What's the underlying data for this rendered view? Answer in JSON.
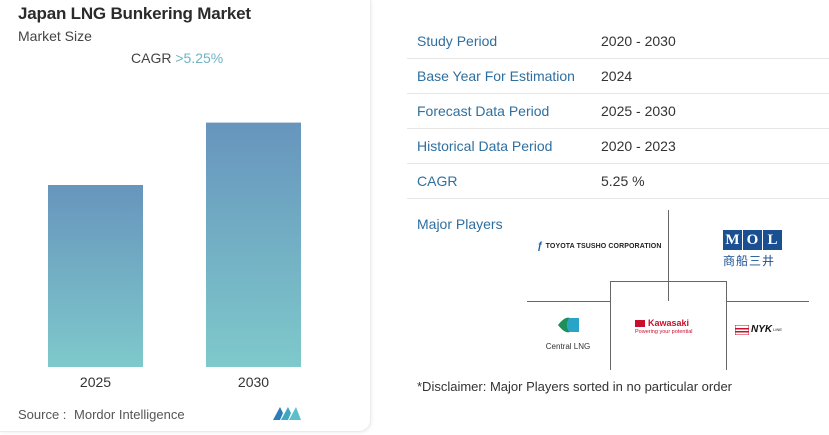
{
  "header": {
    "title": "Japan LNG Bunkering Market",
    "subtitle": "Market Size",
    "cagr_label": "CAGR",
    "cagr_value": ">5.25%"
  },
  "chart_data": {
    "type": "bar",
    "categories": [
      "2025",
      "2030"
    ],
    "values": [
      0.7,
      0.94
    ],
    "ylim": [
      0,
      1
    ],
    "grid": false,
    "legend": "none",
    "colors": {
      "top": "#6795bd",
      "bottom": "#7ec9cb"
    }
  },
  "source": {
    "label": "Source :",
    "name": "Mordor Intelligence"
  },
  "info_table": [
    {
      "label": "Study Period",
      "value": "2020 - 2030"
    },
    {
      "label": "Base Year For Estimation",
      "value": "2024"
    },
    {
      "label": "Forecast Data Period",
      "value": "2025 - 2030"
    },
    {
      "label": "Historical Data Period",
      "value": "2020 - 2023"
    },
    {
      "label": "CAGR",
      "value": "5.25 %"
    }
  ],
  "players": {
    "title": "Major Players",
    "toyota": "TOYOTA TSUSHO CORPORATION",
    "mol_letters": [
      "M",
      "O",
      "L"
    ],
    "mol_kanji": "商船三井",
    "central": "Central LNG",
    "kawasaki": "Kawasaki",
    "kawasaki_tag": "Powering your potential",
    "nyk": "NYK",
    "nyk_line": "LINE"
  },
  "disclaimer": "*Disclaimer: Major Players sorted in no particular order",
  "colors": {
    "accent": "#2f6f9f",
    "cagr": "#6fb3c4"
  }
}
